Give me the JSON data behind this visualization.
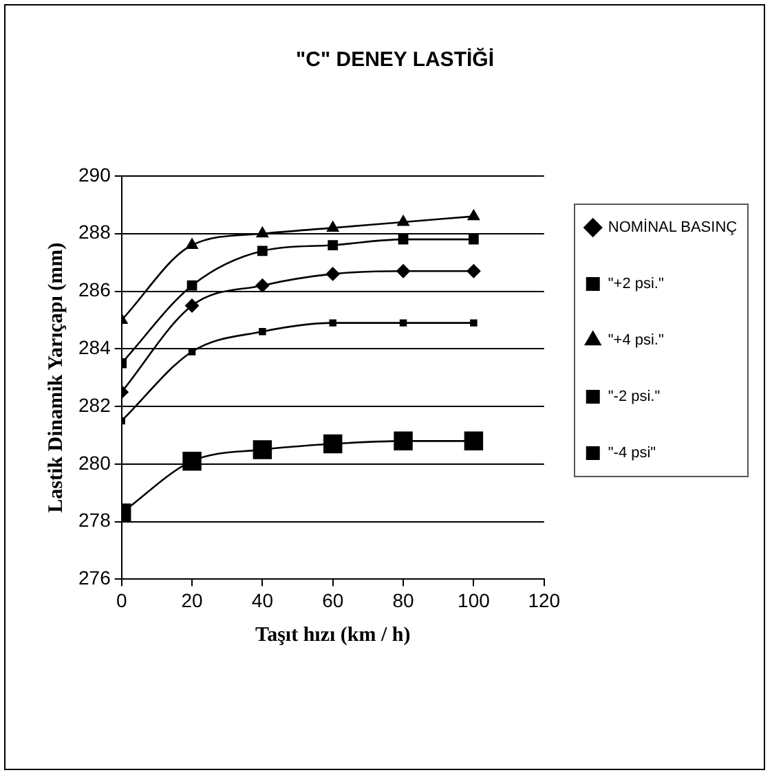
{
  "chart_data": {
    "type": "line",
    "title": "\"C\" DENEY LASTİĞİ",
    "xlabel": "Taşıt hızı (km / h)",
    "ylabel": "Lastik Dinamik Yarıçapı (mm)",
    "x": [
      0,
      20,
      40,
      60,
      80,
      100
    ],
    "xlim": [
      0,
      120
    ],
    "xticks": [
      0,
      20,
      40,
      60,
      80,
      100,
      120
    ],
    "ylim": [
      276,
      290
    ],
    "yticks": [
      276,
      278,
      280,
      282,
      284,
      286,
      288,
      290
    ],
    "grid": "y",
    "legend": "right",
    "series": [
      {
        "name": "NOMİNAL BASINÇ",
        "color": "#000000",
        "marker": "diamond",
        "values": [
          282.5,
          285.5,
          286.2,
          286.6,
          286.7,
          286.7
        ]
      },
      {
        "name": "\"+2 psi.\"",
        "color": "#000000",
        "marker": "square",
        "values": [
          283.5,
          286.2,
          287.4,
          287.6,
          287.8,
          287.8
        ]
      },
      {
        "name": "\"+4 psi.\"",
        "color": "#000000",
        "marker": "triangle",
        "values": [
          285.0,
          287.6,
          288.0,
          288.2,
          288.4,
          288.6
        ]
      },
      {
        "name": "\"-2 psi.\"",
        "color": "#000000",
        "marker": "square",
        "values": [
          281.5,
          283.9,
          284.6,
          284.9,
          284.9,
          284.9
        ]
      },
      {
        "name": "\"-4 psi\"",
        "color": "#000000",
        "marker": "square",
        "values": [
          278.3,
          280.1,
          280.5,
          280.7,
          280.8,
          280.8
        ]
      }
    ]
  }
}
